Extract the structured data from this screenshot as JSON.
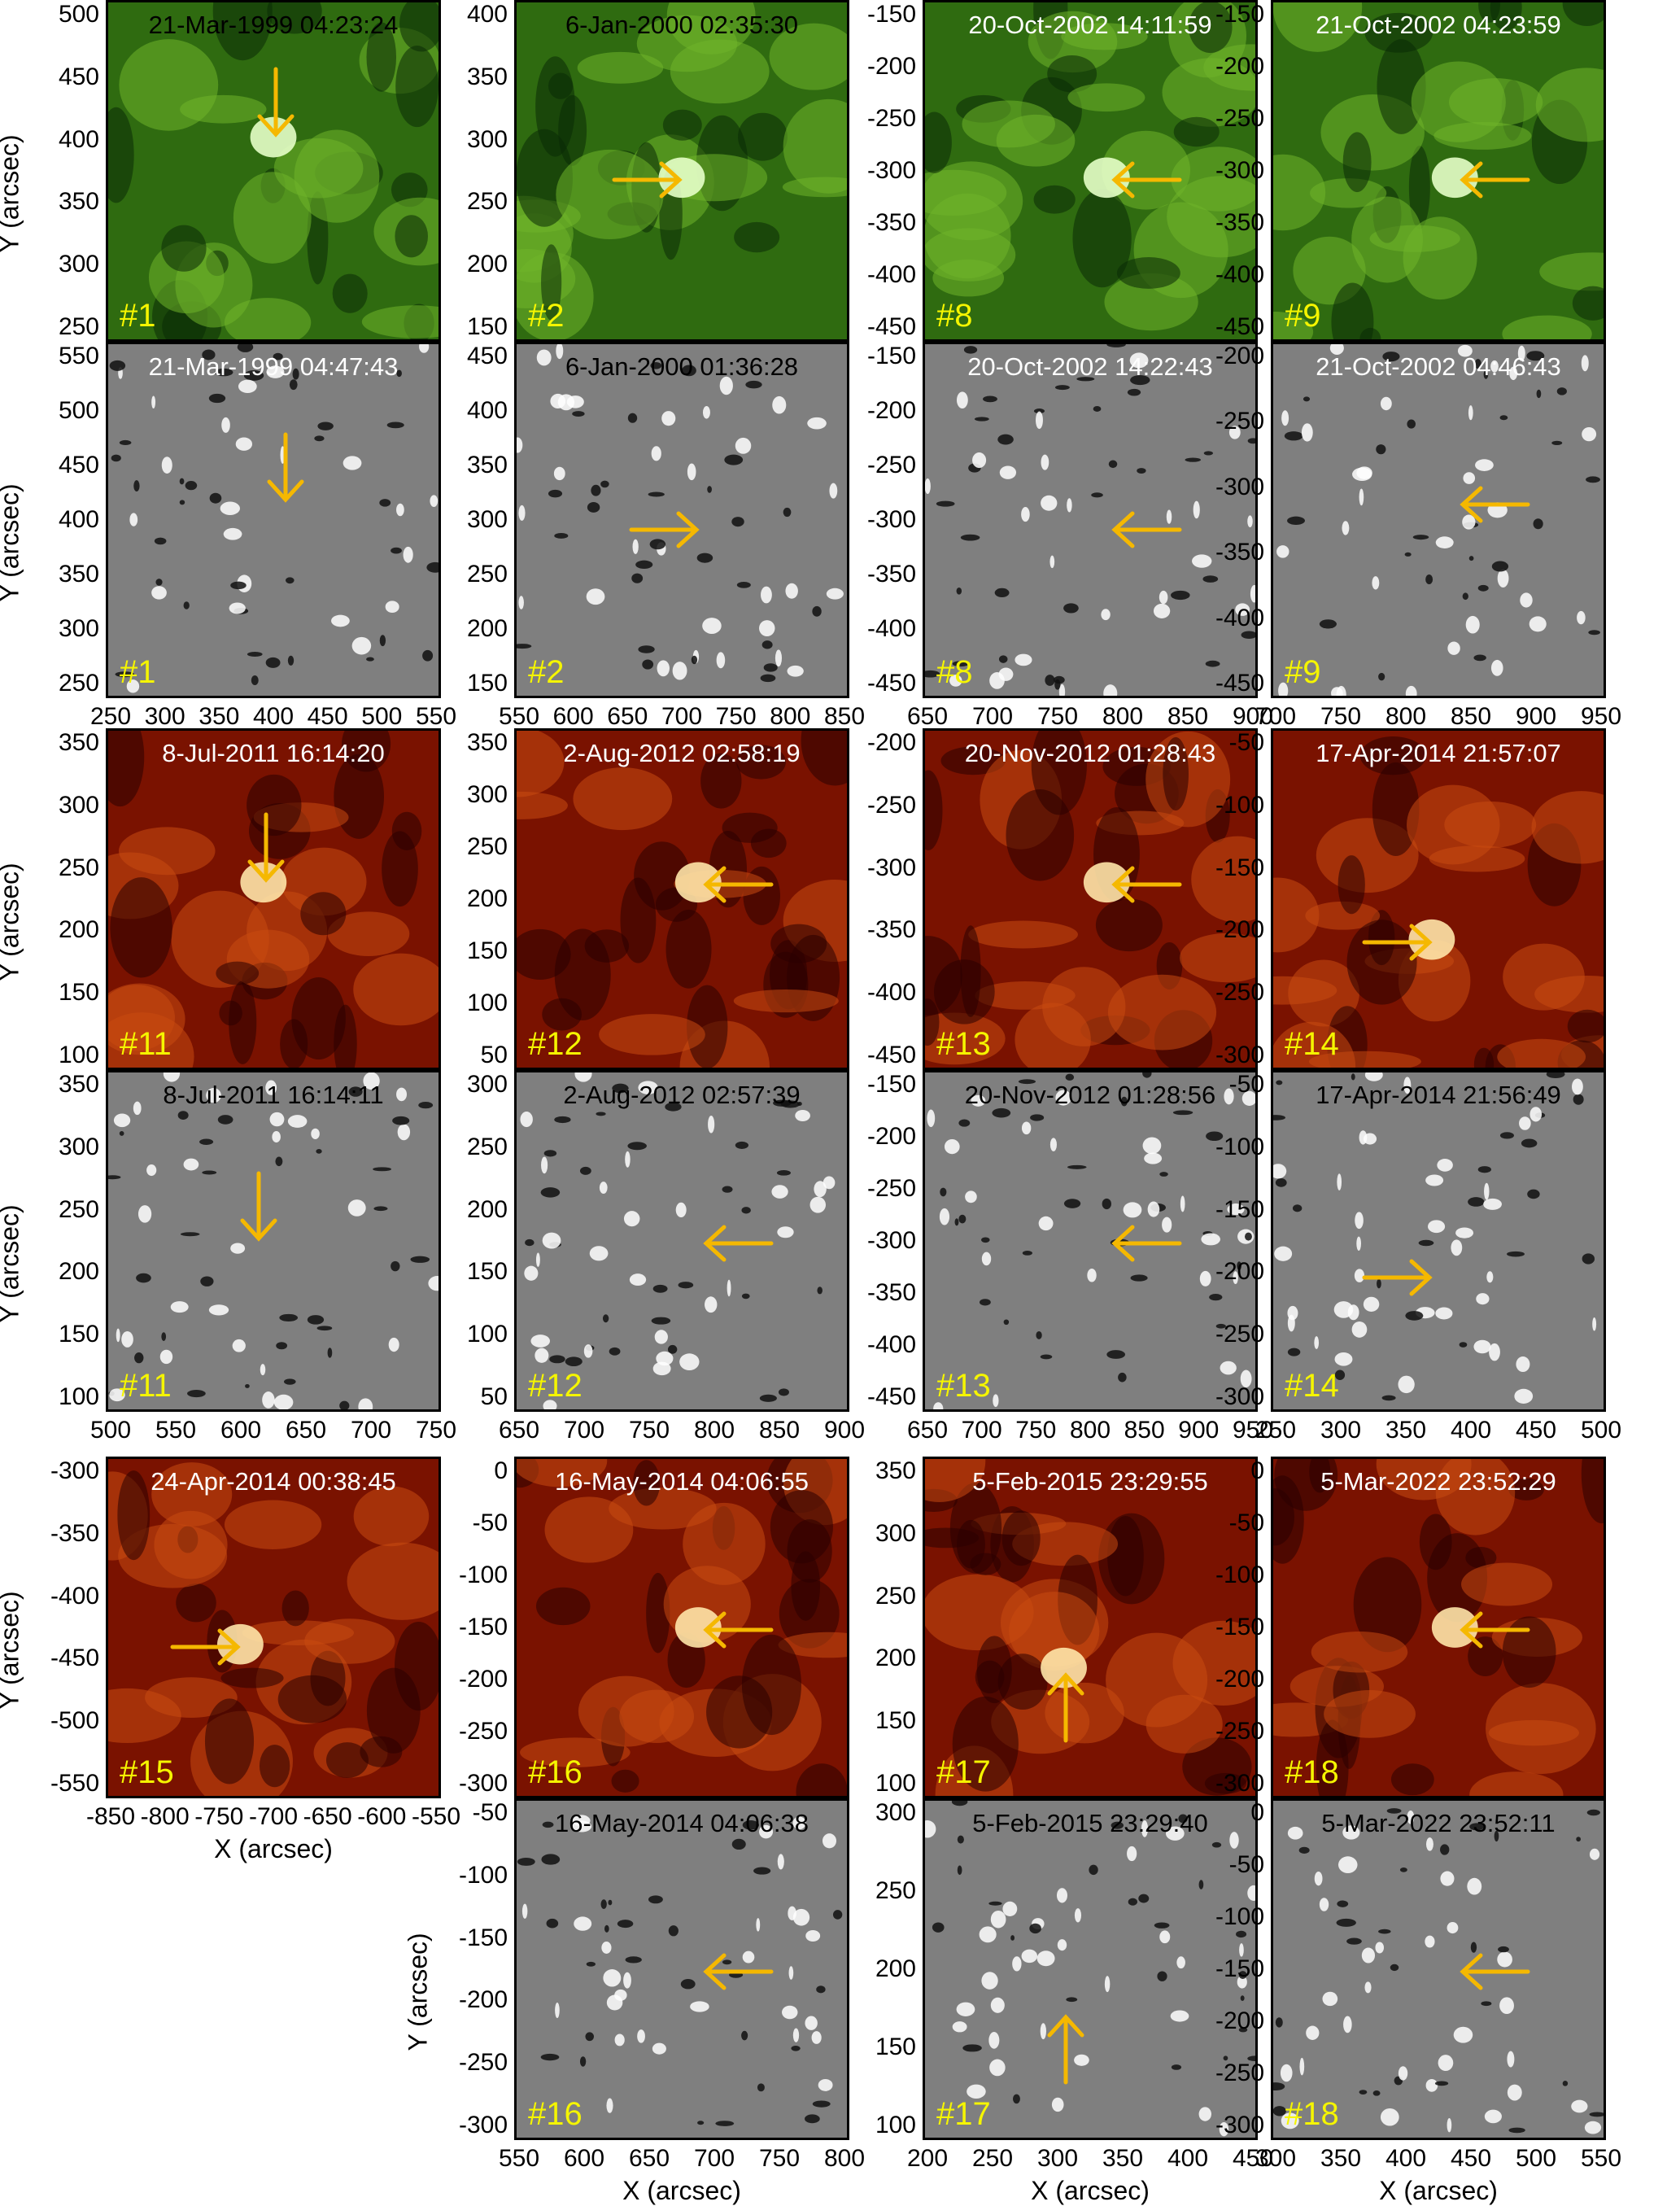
{
  "figure": {
    "axis_y_label": "Y (arcsec)",
    "axis_x_label": "X (arcsec)"
  },
  "colors": {
    "arrow": "#f5b800",
    "event_number": "#f5f500",
    "euv_green": [
      "#0a2a05",
      "#2f6b10",
      "#6fb52a",
      "#e6ffc8"
    ],
    "euv_red": [
      "#2a0000",
      "#7a1200",
      "#c84a10",
      "#ffe6a8"
    ],
    "magnetogram": [
      "#111111",
      "#7f7f7f",
      "#ffffff"
    ]
  },
  "panels": [
    {
      "name": "eit-1",
      "kind": "euv-green",
      "timestamp": "21-Mar-1999 04:23:24",
      "event": "#1",
      "text_color": "#000000",
      "arrow": "down"
    },
    {
      "name": "eit-2",
      "kind": "euv-green",
      "timestamp": "6-Jan-2000 02:35:30",
      "event": "#2",
      "text_color": "#000000",
      "arrow": "right"
    },
    {
      "name": "eit-8",
      "kind": "euv-green",
      "timestamp": "20-Oct-2002 14:11:59",
      "event": "#8",
      "text_color": "#ffffff",
      "arrow": "left"
    },
    {
      "name": "eit-9",
      "kind": "euv-green",
      "timestamp": "21-Oct-2002 04:23:59",
      "event": "#9",
      "text_color": "#ffffff",
      "arrow": "left"
    },
    {
      "name": "mdi-1",
      "kind": "magnetogram",
      "timestamp": "21-Mar-1999 04:47:43",
      "event": "#1",
      "text_color": "#ffffff",
      "arrow": "down"
    },
    {
      "name": "mdi-2",
      "kind": "magnetogram",
      "timestamp": "6-Jan-2000 01:36:28",
      "event": "#2",
      "text_color": "#000000",
      "arrow": "right"
    },
    {
      "name": "mdi-8",
      "kind": "magnetogram",
      "timestamp": "20-Oct-2002 14:22:43",
      "event": "#8",
      "text_color": "#ffffff",
      "arrow": "left"
    },
    {
      "name": "mdi-9",
      "kind": "magnetogram",
      "timestamp": "21-Oct-2002 04:46:43",
      "event": "#9",
      "text_color": "#ffffff",
      "arrow": "left"
    },
    {
      "name": "aia-11",
      "kind": "euv-red",
      "timestamp": "8-Jul-2011 16:14:20",
      "event": "#11",
      "text_color": "#ffffff",
      "arrow": "down"
    },
    {
      "name": "aia-12",
      "kind": "euv-red",
      "timestamp": "2-Aug-2012 02:58:19",
      "event": "#12",
      "text_color": "#ffffff",
      "arrow": "left"
    },
    {
      "name": "aia-13",
      "kind": "euv-red",
      "timestamp": "20-Nov-2012 01:28:43",
      "event": "#13",
      "text_color": "#ffffff",
      "arrow": "left"
    },
    {
      "name": "aia-14",
      "kind": "euv-red",
      "timestamp": "17-Apr-2014 21:57:07",
      "event": "#14",
      "text_color": "#ffffff",
      "arrow": "right"
    },
    {
      "name": "hmi-11",
      "kind": "magnetogram",
      "timestamp": "8-Jul-2011 16:14:11",
      "event": "#11",
      "text_color": "#000000",
      "arrow": "down"
    },
    {
      "name": "hmi-12",
      "kind": "magnetogram",
      "timestamp": "2-Aug-2012 02:57:39",
      "event": "#12",
      "text_color": "#000000",
      "arrow": "left"
    },
    {
      "name": "hmi-13",
      "kind": "magnetogram",
      "timestamp": "20-Nov-2012 01:28:56",
      "event": "#13",
      "text_color": "#000000",
      "arrow": "left"
    },
    {
      "name": "hmi-14",
      "kind": "magnetogram",
      "timestamp": "17-Apr-2014 21:56:49",
      "event": "#14",
      "text_color": "#000000",
      "arrow": "right"
    },
    {
      "name": "aia-15",
      "kind": "euv-red",
      "timestamp": "24-Apr-2014 00:38:45",
      "event": "#15",
      "text_color": "#ffffff",
      "arrow": "right"
    },
    {
      "name": "aia-16",
      "kind": "euv-red",
      "timestamp": "16-May-2014 04:06:55",
      "event": "#16",
      "text_color": "#ffffff",
      "arrow": "left"
    },
    {
      "name": "aia-17",
      "kind": "euv-red",
      "timestamp": "5-Feb-2015 23:29:55",
      "event": "#17",
      "text_color": "#ffffff",
      "arrow": "up"
    },
    {
      "name": "aia-18",
      "kind": "euv-red",
      "timestamp": "5-Mar-2022 23:52:29",
      "event": "#18",
      "text_color": "#ffffff",
      "arrow": "left"
    },
    {
      "name": "hmi-16",
      "kind": "magnetogram",
      "timestamp": "16-May-2014 04:06:38",
      "event": "#16",
      "text_color": "#000000",
      "arrow": "left"
    },
    {
      "name": "hmi-17",
      "kind": "magnetogram",
      "timestamp": "5-Feb-2015 23:29:40",
      "event": "#17",
      "text_color": "#000000",
      "arrow": "up"
    },
    {
      "name": "hmi-18",
      "kind": "magnetogram",
      "timestamp": "5-Mar-2022 23:52:11",
      "event": "#18",
      "text_color": "#000000",
      "arrow": "left"
    }
  ],
  "y_axes": [
    {
      "name": "y-axis-r1c1",
      "ticks": [
        "500",
        "450",
        "400",
        "350",
        "300",
        "250"
      ]
    },
    {
      "name": "y-axis-r1c2",
      "ticks": [
        "400",
        "350",
        "300",
        "250",
        "200",
        "150"
      ]
    },
    {
      "name": "y-axis-r1c3",
      "ticks": [
        "-150",
        "-200",
        "-250",
        "-300",
        "-350",
        "-400",
        "-450"
      ]
    },
    {
      "name": "y-axis-r1c4",
      "ticks": [
        "-150",
        "-200",
        "-250",
        "-300",
        "-350",
        "-400",
        "-450"
      ]
    },
    {
      "name": "y-axis-r2c1",
      "ticks": [
        "550",
        "500",
        "450",
        "400",
        "350",
        "300",
        "250"
      ]
    },
    {
      "name": "y-axis-r2c2",
      "ticks": [
        "450",
        "400",
        "350",
        "300",
        "250",
        "200",
        "150"
      ]
    },
    {
      "name": "y-axis-r2c3",
      "ticks": [
        "-150",
        "-200",
        "-250",
        "-300",
        "-350",
        "-400",
        "-450"
      ]
    },
    {
      "name": "y-axis-r2c4",
      "ticks": [
        "-200",
        "-250",
        "-300",
        "-350",
        "-400",
        "-450"
      ]
    },
    {
      "name": "y-axis-r3c1",
      "ticks": [
        "350",
        "300",
        "250",
        "200",
        "150",
        "100"
      ]
    },
    {
      "name": "y-axis-r3c2",
      "ticks": [
        "350",
        "300",
        "250",
        "200",
        "150",
        "100",
        "50"
      ]
    },
    {
      "name": "y-axis-r3c3",
      "ticks": [
        "-200",
        "-250",
        "-300",
        "-350",
        "-400",
        "-450"
      ]
    },
    {
      "name": "y-axis-r3c4",
      "ticks": [
        "-50",
        "-100",
        "-150",
        "-200",
        "-250",
        "-300"
      ]
    },
    {
      "name": "y-axis-r4c1",
      "ticks": [
        "350",
        "300",
        "250",
        "200",
        "150",
        "100"
      ]
    },
    {
      "name": "y-axis-r4c2",
      "ticks": [
        "300",
        "250",
        "200",
        "150",
        "100",
        "50"
      ]
    },
    {
      "name": "y-axis-r4c3",
      "ticks": [
        "-150",
        "-200",
        "-250",
        "-300",
        "-350",
        "-400",
        "-450"
      ]
    },
    {
      "name": "y-axis-r4c4",
      "ticks": [
        "-50",
        "-100",
        "-150",
        "-200",
        "-250",
        "-300"
      ]
    },
    {
      "name": "y-axis-r5c1",
      "ticks": [
        "-300",
        "-350",
        "-400",
        "-450",
        "-500",
        "-550"
      ]
    },
    {
      "name": "y-axis-r5c2",
      "ticks": [
        "0",
        "-50",
        "-100",
        "-150",
        "-200",
        "-250",
        "-300"
      ]
    },
    {
      "name": "y-axis-r5c3",
      "ticks": [
        "350",
        "300",
        "250",
        "200",
        "150",
        "100"
      ]
    },
    {
      "name": "y-axis-r5c4",
      "ticks": [
        "0",
        "-50",
        "-100",
        "-150",
        "-200",
        "-250",
        "-300"
      ]
    },
    {
      "name": "y-axis-r6c2",
      "ticks": [
        "-50",
        "-100",
        "-150",
        "-200",
        "-250",
        "-300"
      ]
    },
    {
      "name": "y-axis-r6c3",
      "ticks": [
        "300",
        "250",
        "200",
        "150",
        "100"
      ]
    },
    {
      "name": "y-axis-r6c4",
      "ticks": [
        "0",
        "-50",
        "-100",
        "-150",
        "-200",
        "-250",
        "-300"
      ]
    }
  ],
  "x_axes": [
    {
      "name": "x-axis-r2c1",
      "ticks": [
        "250",
        "300",
        "350",
        "400",
        "450",
        "500",
        "550"
      ]
    },
    {
      "name": "x-axis-r2c2",
      "ticks": [
        "550",
        "600",
        "650",
        "700",
        "750",
        "800",
        "850"
      ]
    },
    {
      "name": "x-axis-r2c3",
      "ticks": [
        "650",
        "700",
        "750",
        "800",
        "850",
        "900"
      ]
    },
    {
      "name": "x-axis-r2c4",
      "ticks": [
        "700",
        "750",
        "800",
        "850",
        "900",
        "950"
      ]
    },
    {
      "name": "x-axis-r4c1",
      "ticks": [
        "500",
        "550",
        "600",
        "650",
        "700",
        "750"
      ]
    },
    {
      "name": "x-axis-r4c2",
      "ticks": [
        "650",
        "700",
        "750",
        "800",
        "850",
        "900"
      ]
    },
    {
      "name": "x-axis-r4c3",
      "ticks": [
        "650",
        "700",
        "750",
        "800",
        "850",
        "900",
        "950"
      ]
    },
    {
      "name": "x-axis-r4c4",
      "ticks": [
        "250",
        "300",
        "350",
        "400",
        "450",
        "500"
      ]
    },
    {
      "name": "x-axis-r5c1",
      "ticks": [
        "-850",
        "-800",
        "-750",
        "-700",
        "-650",
        "-600",
        "-550"
      ]
    },
    {
      "name": "x-axis-r6c2",
      "ticks": [
        "550",
        "600",
        "650",
        "700",
        "750",
        "800"
      ]
    },
    {
      "name": "x-axis-r6c3",
      "ticks": [
        "200",
        "250",
        "300",
        "350",
        "400",
        "450"
      ]
    },
    {
      "name": "x-axis-r6c4",
      "ticks": [
        "300",
        "350",
        "400",
        "450",
        "500",
        "550"
      ]
    }
  ]
}
